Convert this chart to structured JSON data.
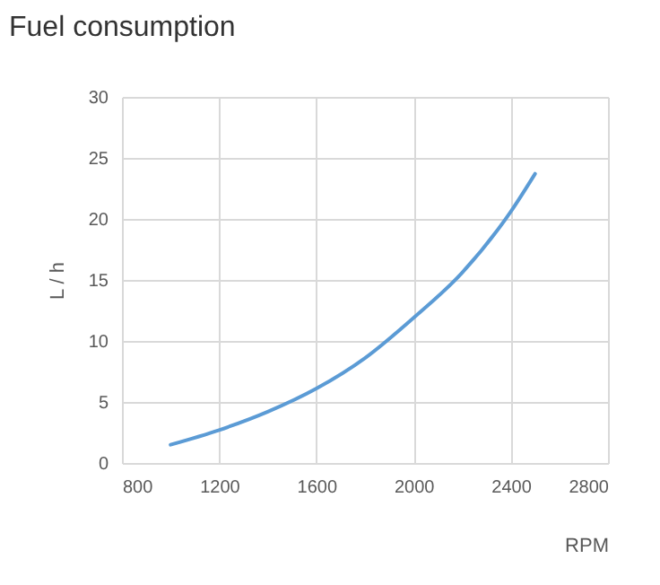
{
  "chart_data": {
    "type": "line",
    "title": "Fuel consumption",
    "xlabel": "RPM",
    "ylabel": "L / h",
    "x": [
      1000,
      1200,
      1400,
      1600,
      1800,
      2000,
      2200,
      2400,
      2500
    ],
    "series": [
      {
        "color": "#5b9bd5",
        "values": [
          1.5,
          2.7,
          4.2,
          6.1,
          8.6,
          11.9,
          15.6,
          20.6,
          23.7
        ]
      }
    ],
    "xlim": [
      800,
      2800
    ],
    "xticks": [
      800,
      1200,
      1600,
      2000,
      2400,
      2800
    ],
    "ylim": [
      0,
      30
    ],
    "yticks": [
      0,
      5,
      10,
      15,
      20,
      25,
      30
    ],
    "grid": true,
    "marker": "none",
    "line_style": "solid"
  }
}
